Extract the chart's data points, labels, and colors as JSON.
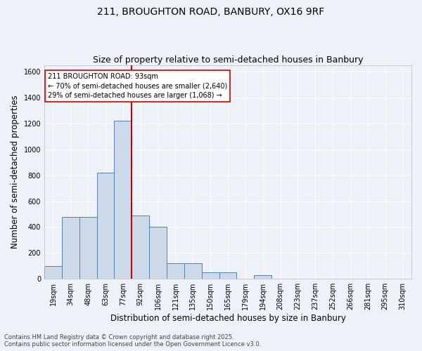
{
  "title_line1": "211, BROUGHTON ROAD, BANBURY, OX16 9RF",
  "title_line2": "Size of property relative to semi-detached houses in Banbury",
  "xlabel": "Distribution of semi-detached houses by size in Banbury",
  "ylabel": "Number of semi-detached properties",
  "footnote": "Contains HM Land Registry data © Crown copyright and database right 2025.\nContains public sector information licensed under the Open Government Licence v3.0.",
  "bin_labels": [
    "19sqm",
    "34sqm",
    "48sqm",
    "63sqm",
    "77sqm",
    "92sqm",
    "106sqm",
    "121sqm",
    "135sqm",
    "150sqm",
    "165sqm",
    "179sqm",
    "194sqm",
    "208sqm",
    "223sqm",
    "237sqm",
    "252sqm",
    "266sqm",
    "281sqm",
    "295sqm",
    "310sqm"
  ],
  "bar_values": [
    100,
    480,
    480,
    820,
    1220,
    490,
    400,
    120,
    120,
    50,
    50,
    0,
    30,
    0,
    0,
    0,
    0,
    0,
    0,
    0,
    0
  ],
  "bar_color": "#ccd9e8",
  "bar_edge_color": "#5580aa",
  "vline_color": "#cc0000",
  "annotation_text": "211 BROUGHTON ROAD: 93sqm\n← 70% of semi-detached houses are smaller (2,640)\n29% of semi-detached houses are larger (1,068) →",
  "annotation_box_color": "#cc0000",
  "background_color": "#eef2f8",
  "ylim": [
    0,
    1650
  ],
  "yticks": [
    0,
    200,
    400,
    600,
    800,
    1000,
    1200,
    1400,
    1600
  ],
  "grid_color": "#ffffff",
  "title_fontsize": 10,
  "subtitle_fontsize": 9,
  "axis_label_fontsize": 8.5,
  "tick_fontsize": 7,
  "annot_fontsize": 7,
  "footnote_fontsize": 6
}
